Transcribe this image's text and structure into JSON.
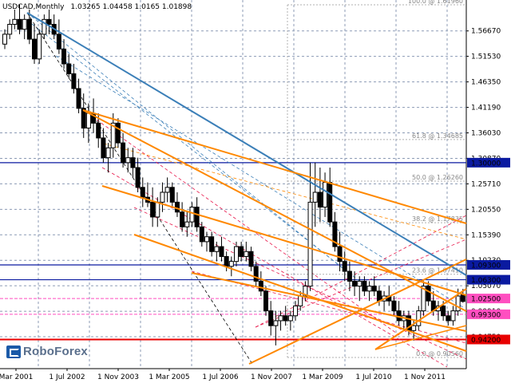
{
  "header": {
    "symbol": "USDCAD,Monthly",
    "ohlc": "1.03265 1.04458 1.0165 1.01898"
  },
  "logo_text": "RoboForex",
  "chart_data": {
    "type": "candlestick",
    "title": "USDCAD,Monthly",
    "ylim": [
      0.9,
      1.64
    ],
    "price_ticks": [
      "1.56670",
      "1.51530",
      "1.46350",
      "1.41190",
      "1.36030",
      "1.30870",
      "1.25710",
      "1.20550",
      "1.15390",
      "1.10230",
      "1.05070",
      "0.99910",
      "0.94750"
    ],
    "x_ticks": [
      "Mar 2001",
      "1 Jul 2002",
      "1 Nov 2003",
      "1 Mar 2005",
      "1 Jul 2006",
      "1 Nov 2007",
      "1 Mar 2009",
      "1 Jul 2010",
      "1 Nov 2011"
    ],
    "fibonacci_levels": [
      {
        "label": "100.0 @ 1.61960",
        "value": 1.6196
      },
      {
        "label": "61.8 @ 1.34685",
        "value": 1.34685
      },
      {
        "label": "50.0 @ 1.26260",
        "value": 1.2626
      },
      {
        "label": "38.2 @ 1.17835",
        "value": 1.17835
      },
      {
        "label": "23.6 @ 1.07410",
        "value": 1.0741
      },
      {
        "label": "0.0 @ 0.90560",
        "value": 0.9056
      }
    ],
    "horizontal_levels": [
      {
        "label": "1.30000",
        "value": 1.3,
        "color": "#0a1aa0"
      },
      {
        "label": "1.09300",
        "value": 1.093,
        "color": "#0a1aa0"
      },
      {
        "label": "1.06300",
        "value": 1.063,
        "color": "#0a1aa0"
      },
      {
        "label": "1.02500",
        "value": 1.025,
        "color": "#ff4ec0"
      },
      {
        "label": "0.99300",
        "value": 0.993,
        "color": "#ff4ec0"
      },
      {
        "label": "0.94200",
        "value": 0.942,
        "color": "#e80000"
      }
    ],
    "candles": [
      [
        1.54,
        1.57,
        1.53,
        1.56
      ],
      [
        1.56,
        1.59,
        1.55,
        1.58
      ],
      [
        1.58,
        1.61,
        1.57,
        1.59
      ],
      [
        1.59,
        1.62,
        1.56,
        1.57
      ],
      [
        1.57,
        1.6,
        1.55,
        1.59
      ],
      [
        1.59,
        1.61,
        1.54,
        1.55
      ],
      [
        1.55,
        1.58,
        1.5,
        1.51
      ],
      [
        1.51,
        1.57,
        1.5,
        1.56
      ],
      [
        1.56,
        1.6,
        1.55,
        1.59
      ],
      [
        1.59,
        1.61,
        1.56,
        1.58
      ],
      [
        1.58,
        1.6,
        1.55,
        1.56
      ],
      [
        1.56,
        1.59,
        1.52,
        1.53
      ],
      [
        1.53,
        1.55,
        1.49,
        1.5
      ],
      [
        1.5,
        1.52,
        1.47,
        1.48
      ],
      [
        1.48,
        1.5,
        1.44,
        1.45
      ],
      [
        1.45,
        1.47,
        1.4,
        1.41
      ],
      [
        1.41,
        1.44,
        1.35,
        1.37
      ],
      [
        1.37,
        1.42,
        1.34,
        1.4
      ],
      [
        1.4,
        1.43,
        1.36,
        1.38
      ],
      [
        1.38,
        1.4,
        1.33,
        1.35
      ],
      [
        1.35,
        1.37,
        1.3,
        1.31
      ],
      [
        1.31,
        1.34,
        1.28,
        1.33
      ],
      [
        1.33,
        1.4,
        1.31,
        1.38
      ],
      [
        1.38,
        1.39,
        1.33,
        1.34
      ],
      [
        1.34,
        1.36,
        1.29,
        1.3
      ],
      [
        1.3,
        1.33,
        1.28,
        1.31
      ],
      [
        1.31,
        1.33,
        1.27,
        1.29
      ],
      [
        1.29,
        1.31,
        1.24,
        1.25
      ],
      [
        1.25,
        1.27,
        1.21,
        1.23
      ],
      [
        1.23,
        1.26,
        1.21,
        1.22
      ],
      [
        1.22,
        1.25,
        1.17,
        1.19
      ],
      [
        1.19,
        1.23,
        1.17,
        1.22
      ],
      [
        1.22,
        1.26,
        1.2,
        1.24
      ],
      [
        1.24,
        1.27,
        1.22,
        1.25
      ],
      [
        1.25,
        1.26,
        1.21,
        1.22
      ],
      [
        1.22,
        1.24,
        1.19,
        1.2
      ],
      [
        1.2,
        1.22,
        1.16,
        1.17
      ],
      [
        1.17,
        1.2,
        1.15,
        1.18
      ],
      [
        1.18,
        1.22,
        1.17,
        1.21
      ],
      [
        1.21,
        1.23,
        1.16,
        1.17
      ],
      [
        1.17,
        1.18,
        1.13,
        1.14
      ],
      [
        1.14,
        1.16,
        1.12,
        1.15
      ],
      [
        1.15,
        1.16,
        1.11,
        1.12
      ],
      [
        1.12,
        1.14,
        1.1,
        1.13
      ],
      [
        1.13,
        1.15,
        1.1,
        1.11
      ],
      [
        1.11,
        1.12,
        1.08,
        1.09
      ],
      [
        1.09,
        1.11,
        1.07,
        1.1
      ],
      [
        1.1,
        1.14,
        1.09,
        1.13
      ],
      [
        1.13,
        1.14,
        1.1,
        1.11
      ],
      [
        1.11,
        1.14,
        1.1,
        1.12
      ],
      [
        1.12,
        1.13,
        1.08,
        1.09
      ],
      [
        1.09,
        1.1,
        1.05,
        1.06
      ],
      [
        1.06,
        1.08,
        1.03,
        1.04
      ],
      [
        1.04,
        1.05,
        0.99,
        1.0
      ],
      [
        1.0,
        1.02,
        0.95,
        0.97
      ],
      [
        0.97,
        1.0,
        0.93,
        0.98
      ],
      [
        0.98,
        1.0,
        0.96,
        0.99
      ],
      [
        0.99,
        1.01,
        0.97,
        0.98
      ],
      [
        0.98,
        1.0,
        0.96,
        0.99
      ],
      [
        0.99,
        1.02,
        0.98,
        1.01
      ],
      [
        1.01,
        1.04,
        1.0,
        1.03
      ],
      [
        1.03,
        1.06,
        1.02,
        1.05
      ],
      [
        1.05,
        1.3,
        1.04,
        1.22
      ],
      [
        1.22,
        1.3,
        1.17,
        1.24
      ],
      [
        1.24,
        1.29,
        1.18,
        1.21
      ],
      [
        1.21,
        1.28,
        1.19,
        1.26
      ],
      [
        1.26,
        1.29,
        1.17,
        1.18
      ],
      [
        1.18,
        1.2,
        1.12,
        1.13
      ],
      [
        1.13,
        1.16,
        1.08,
        1.1
      ],
      [
        1.1,
        1.12,
        1.06,
        1.08
      ],
      [
        1.08,
        1.1,
        1.04,
        1.06
      ],
      [
        1.06,
        1.08,
        1.03,
        1.05
      ],
      [
        1.05,
        1.07,
        1.02,
        1.06
      ],
      [
        1.06,
        1.07,
        1.03,
        1.04
      ],
      [
        1.04,
        1.06,
        1.02,
        1.05
      ],
      [
        1.05,
        1.07,
        1.03,
        1.04
      ],
      [
        1.04,
        1.05,
        1.01,
        1.02
      ],
      [
        1.02,
        1.04,
        1.0,
        1.03
      ],
      [
        1.03,
        1.05,
        1.01,
        1.02
      ],
      [
        1.02,
        1.03,
        0.99,
        1.0
      ],
      [
        1.0,
        1.02,
        0.97,
        0.98
      ],
      [
        0.98,
        1.0,
        0.96,
        0.99
      ],
      [
        0.99,
        1.0,
        0.95,
        0.96
      ],
      [
        0.96,
        0.98,
        0.94,
        0.97
      ],
      [
        0.97,
        1.01,
        0.96,
        1.0
      ],
      [
        1.0,
        1.06,
        0.99,
        1.05
      ],
      [
        1.05,
        1.06,
        1.01,
        1.02
      ],
      [
        1.02,
        1.04,
        0.99,
        1.0
      ],
      [
        1.0,
        1.02,
        0.98,
        1.01
      ],
      [
        1.01,
        1.02,
        0.98,
        0.99
      ],
      [
        0.99,
        1.0,
        0.97,
        0.98
      ],
      [
        0.98,
        1.01,
        0.97,
        1.0
      ],
      [
        1.0,
        1.045,
        0.99,
        1.03
      ],
      [
        1.03265,
        1.04458,
        1.0165,
        1.01898
      ]
    ]
  }
}
